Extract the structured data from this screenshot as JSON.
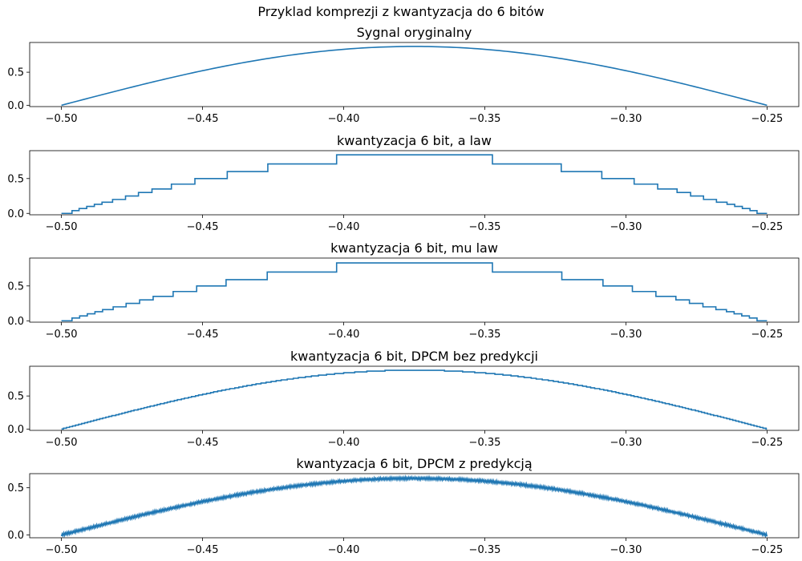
{
  "figure": {
    "suptitle": "Przyklad komprezji z kwantyzacja do 6 bitów",
    "line_color": "#1f77b4"
  },
  "chart_data": [
    {
      "type": "line",
      "title": "Sygnal oryginalny",
      "signal": "smooth",
      "xlim": [
        -0.5,
        -0.25
      ],
      "ylim": [
        -0.02,
        0.95
      ],
      "xticks": [
        -0.5,
        -0.45,
        -0.4,
        -0.35,
        -0.3,
        -0.25
      ],
      "xtick_labels": [
        "−0.50",
        "−0.45",
        "−0.40",
        "−0.35",
        "−0.30",
        "−0.25"
      ],
      "yticks": [
        0.0,
        0.5
      ],
      "ytick_labels": [
        "0.0",
        "0.5"
      ],
      "x": [
        -0.5,
        -0.475,
        -0.45,
        -0.425,
        -0.4,
        -0.375,
        -0.35,
        -0.325,
        -0.3,
        -0.275,
        -0.25
      ],
      "y": [
        0.0,
        0.28,
        0.52,
        0.73,
        0.85,
        0.89,
        0.85,
        0.73,
        0.52,
        0.28,
        0.0
      ]
    },
    {
      "type": "line",
      "title": "kwantyzacja 6 bit, a law",
      "signal": "step",
      "xlim": [
        -0.5,
        -0.25
      ],
      "ylim": [
        -0.02,
        0.9
      ],
      "xticks": [
        -0.5,
        -0.45,
        -0.4,
        -0.35,
        -0.3,
        -0.25
      ],
      "xtick_labels": [
        "−0.50",
        "−0.45",
        "−0.40",
        "−0.35",
        "−0.30",
        "−0.25"
      ],
      "yticks": [
        0.0,
        0.5
      ],
      "ytick_labels": [
        "0.0",
        "0.5"
      ],
      "levels": [
        0.0,
        0.04,
        0.07,
        0.1,
        0.13,
        0.16,
        0.2,
        0.25,
        0.3,
        0.35,
        0.42,
        0.5,
        0.6,
        0.71,
        0.84
      ]
    },
    {
      "type": "line",
      "title": "kwantyzacja 6 bit, mu law",
      "signal": "step",
      "xlim": [
        -0.5,
        -0.25
      ],
      "ylim": [
        -0.02,
        0.9
      ],
      "xticks": [
        -0.5,
        -0.45,
        -0.4,
        -0.35,
        -0.3,
        -0.25
      ],
      "xtick_labels": [
        "−0.50",
        "−0.45",
        "−0.40",
        "−0.35",
        "−0.30",
        "−0.25"
      ],
      "yticks": [
        0.0,
        0.5
      ],
      "ytick_labels": [
        "0.0",
        "0.5"
      ],
      "levels": [
        0.0,
        0.04,
        0.07,
        0.1,
        0.13,
        0.16,
        0.2,
        0.25,
        0.3,
        0.35,
        0.42,
        0.5,
        0.59,
        0.7,
        0.83
      ]
    },
    {
      "type": "line",
      "title": "kwantyzacja 6 bit, DPCM bez predykcji",
      "signal": "staircase",
      "xlim": [
        -0.5,
        -0.25
      ],
      "ylim": [
        -0.02,
        0.95
      ],
      "xticks": [
        -0.5,
        -0.45,
        -0.4,
        -0.35,
        -0.3,
        -0.25
      ],
      "xtick_labels": [
        "−0.50",
        "−0.45",
        "−0.40",
        "−0.35",
        "−0.30",
        "−0.25"
      ],
      "yticks": [
        0.0,
        0.5
      ],
      "ytick_labels": [
        "0.0",
        "0.5"
      ],
      "peak": 0.89
    },
    {
      "type": "line",
      "title": "kwantyzacja 6 bit, DPCM z predykcją",
      "signal": "noisy",
      "xlim": [
        -0.5,
        -0.25
      ],
      "ylim": [
        -0.03,
        0.65
      ],
      "xticks": [
        -0.5,
        -0.45,
        -0.4,
        -0.35,
        -0.3,
        -0.25
      ],
      "xtick_labels": [
        "−0.50",
        "−0.45",
        "−0.40",
        "−0.35",
        "−0.30",
        "−0.25"
      ],
      "yticks": [
        0.0,
        0.5
      ],
      "ytick_labels": [
        "0.0",
        "0.5"
      ],
      "peak": 0.6
    }
  ]
}
